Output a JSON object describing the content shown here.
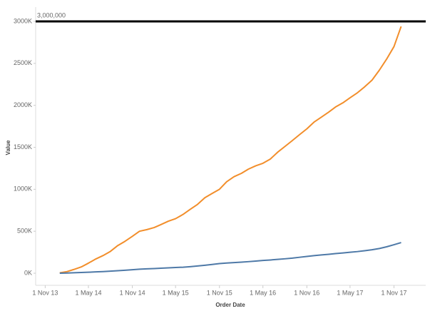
{
  "chart_data": {
    "type": "line",
    "x_label": "Order Date",
    "y_label": "Value",
    "x": [
      "2014-01-01",
      "2014-02-01",
      "2014-03-01",
      "2014-04-01",
      "2014-05-01",
      "2014-06-01",
      "2014-07-01",
      "2014-08-01",
      "2014-09-01",
      "2014-10-01",
      "2014-11-01",
      "2014-12-01",
      "2015-01-01",
      "2015-02-01",
      "2015-03-01",
      "2015-04-01",
      "2015-05-01",
      "2015-06-01",
      "2015-07-01",
      "2015-08-01",
      "2015-09-01",
      "2015-10-01",
      "2015-11-01",
      "2015-12-01",
      "2016-01-01",
      "2016-02-01",
      "2016-03-01",
      "2016-04-01",
      "2016-05-01",
      "2016-06-01",
      "2016-07-01",
      "2016-08-01",
      "2016-09-01",
      "2016-10-01",
      "2016-11-01",
      "2016-12-01",
      "2017-01-01",
      "2017-02-01",
      "2017-03-01",
      "2017-04-01",
      "2017-05-01",
      "2017-06-01",
      "2017-07-01",
      "2017-08-01",
      "2017-09-01",
      "2017-10-01",
      "2017-11-01",
      "2017-12-01"
    ],
    "series": [
      {
        "color": "#f28e2b",
        "values": [
          5000,
          20000,
          45000,
          75000,
          120000,
          170000,
          210000,
          260000,
          330000,
          380000,
          440000,
          500000,
          520000,
          545000,
          580000,
          620000,
          650000,
          700000,
          760000,
          820000,
          900000,
          950000,
          1000000,
          1090000,
          1150000,
          1190000,
          1240000,
          1280000,
          1310000,
          1360000,
          1440000,
          1510000,
          1580000,
          1650000,
          1720000,
          1800000,
          1860000,
          1920000,
          1980000,
          2030000,
          2090000,
          2150000,
          2220000,
          2300000,
          2420000,
          2550000,
          2700000,
          2940000
        ]
      },
      {
        "color": "#4e79a7",
        "values": [
          0,
          3000,
          6000,
          9000,
          12000,
          16000,
          20000,
          25000,
          30000,
          36000,
          42000,
          48000,
          52000,
          56000,
          60000,
          64000,
          68000,
          72000,
          78000,
          86000,
          95000,
          105000,
          115000,
          122000,
          127000,
          132000,
          138000,
          145000,
          152000,
          158000,
          165000,
          172000,
          180000,
          190000,
          200000,
          210000,
          218000,
          226000,
          234000,
          242000,
          250000,
          258000,
          268000,
          280000,
          295000,
          315000,
          340000,
          365000
        ]
      }
    ],
    "xlim": [
      "2013-09-22",
      "2018-03-14"
    ],
    "xticks": [
      {
        "value": "2013-11-01",
        "label": "1 Nov 13"
      },
      {
        "value": "2014-05-01",
        "label": "1 May 14"
      },
      {
        "value": "2014-11-01",
        "label": "1 Nov 14"
      },
      {
        "value": "2015-05-01",
        "label": "1 May 15"
      },
      {
        "value": "2015-11-01",
        "label": "1 Nov 15"
      },
      {
        "value": "2016-05-01",
        "label": "1 May 16"
      },
      {
        "value": "2016-11-01",
        "label": "1 Nov 16"
      },
      {
        "value": "2017-05-01",
        "label": "1 May 17"
      },
      {
        "value": "2017-11-01",
        "label": "1 Nov 17"
      }
    ],
    "ylim": [
      -144000,
      3102000
    ],
    "yticks": [
      {
        "value": 0,
        "label": "0K"
      },
      {
        "value": 500000,
        "label": "500K"
      },
      {
        "value": 1000000,
        "label": "1000K"
      },
      {
        "value": 1500000,
        "label": "1500K"
      },
      {
        "value": 2000000,
        "label": "2000K"
      },
      {
        "value": 2500000,
        "label": "2500K"
      },
      {
        "value": 3000000,
        "label": "3000K"
      }
    ],
    "reference_line": {
      "value": 3000000,
      "label": "3,000,000",
      "color": "#000000"
    },
    "grid": false
  }
}
